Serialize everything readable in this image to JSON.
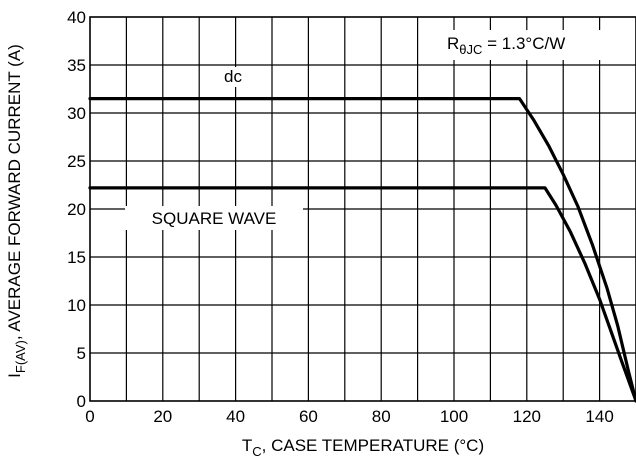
{
  "chart_data": {
    "type": "line",
    "title": "",
    "xlabel": {
      "main": "T",
      "sub": "C",
      "rest": ", CASE TEMPERATURE (°C)"
    },
    "ylabel": {
      "main": "I",
      "sub": "F(AV)",
      "rest": ", AVERAGE FORWARD CURRENT (A)"
    },
    "xlim": [
      0,
      150
    ],
    "ylim": [
      0,
      40
    ],
    "xticks": [
      0,
      20,
      40,
      60,
      80,
      100,
      120,
      140
    ],
    "yticks": [
      0,
      5,
      10,
      15,
      20,
      25,
      30,
      35,
      40
    ],
    "x_minor_step": 10,
    "grid": true,
    "annotation": {
      "r_main": "R",
      "r_sub": "θJC",
      "r_rest": " = 1.3°C/W"
    },
    "series": [
      {
        "name": "dc",
        "points": [
          [
            0,
            31.5
          ],
          [
            118,
            31.5
          ],
          [
            122,
            29.2
          ],
          [
            126,
            26.6
          ],
          [
            130,
            23.6
          ],
          [
            134,
            20.3
          ],
          [
            138,
            16.3
          ],
          [
            142,
            11.8
          ],
          [
            145,
            7.8
          ],
          [
            148,
            3.0
          ],
          [
            150,
            0
          ]
        ]
      },
      {
        "name": "SQUARE WAVE",
        "points": [
          [
            0,
            22.2
          ],
          [
            125,
            22.2
          ],
          [
            128,
            20.4
          ],
          [
            132,
            17.6
          ],
          [
            136,
            14.3
          ],
          [
            140,
            10.6
          ],
          [
            143,
            7.4
          ],
          [
            146,
            4.2
          ],
          [
            150,
            0
          ]
        ]
      }
    ]
  }
}
